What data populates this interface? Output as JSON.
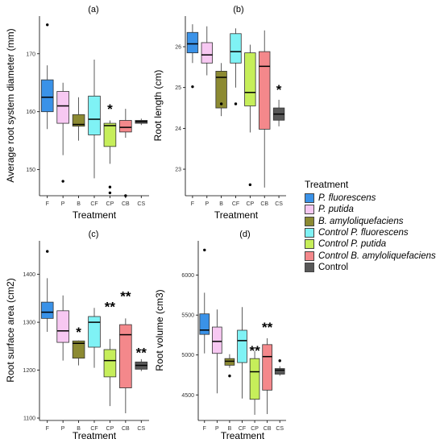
{
  "legend": {
    "title": "Treatment",
    "items": [
      {
        "label": "P. fluorescens",
        "color": "#3a92e8",
        "italic": true
      },
      {
        "label": "P. putida",
        "color": "#f7c8f2",
        "italic": true
      },
      {
        "label": "B. amyloliquefaciens",
        "color": "#8c8a32",
        "italic": true
      },
      {
        "label": "Control P. fluorescens",
        "color": "#7ff2f5",
        "italic": true
      },
      {
        "label": "Control P. putida",
        "color": "#c6ee5a",
        "italic": true
      },
      {
        "label": "Control B. amyloliquefaciens",
        "color": "#f4888b",
        "italic": true
      },
      {
        "label": "Control",
        "color": "#585858",
        "italic": false
      }
    ]
  },
  "chart_data": [
    {
      "type": "box",
      "panel": "(a)",
      "title": "(a)",
      "xlabel": "Treatment",
      "ylabel": "Average root system diameter (mm)",
      "categories": [
        "F",
        "P",
        "B",
        "CF",
        "CP",
        "CB",
        "CS"
      ],
      "ylim": [
        145.5,
        176.5
      ],
      "yticks": [
        150,
        160,
        170
      ],
      "boxes": [
        {
          "min": 157,
          "q1": 160,
          "median": 162.5,
          "q3": 165.5,
          "max": 168,
          "outliers": [
            175
          ]
        },
        {
          "min": 152.5,
          "q1": 158,
          "median": 161,
          "q3": 163.5,
          "max": 165,
          "outliers": [
            148
          ]
        },
        {
          "min": 155,
          "q1": 157.5,
          "median": 157.8,
          "q3": 159.5,
          "max": 162.5,
          "outliers": []
        },
        {
          "min": 148.5,
          "q1": 156,
          "median": 158.7,
          "q3": 162.7,
          "max": 169,
          "outliers": []
        },
        {
          "min": 151,
          "q1": 154,
          "median": 157.6,
          "q3": 158,
          "max": 158.5,
          "outliers": [
            147,
            146
          ]
        },
        {
          "min": 155.5,
          "q1": 156.5,
          "median": 157.3,
          "q3": 158.5,
          "max": 160.5,
          "outliers": [
            145.5
          ]
        },
        {
          "min": 157.7,
          "q1": 158,
          "median": 158.3,
          "q3": 158.5,
          "max": 158.8,
          "outliers": []
        }
      ],
      "annotations": [
        {
          "cat": "CP",
          "text": "*",
          "y": 160.5
        }
      ]
    },
    {
      "type": "box",
      "panel": "(b)",
      "title": "(b)",
      "xlabel": "Treatment",
      "ylabel": "Root length (cm)",
      "categories": [
        "F",
        "P",
        "B",
        "CF",
        "CP",
        "CB",
        "CS"
      ],
      "ylim": [
        22.35,
        26.75
      ],
      "yticks": [
        23,
        24,
        25,
        26
      ],
      "boxes": [
        {
          "min": 25.6,
          "q1": 25.85,
          "median": 26.07,
          "q3": 26.35,
          "max": 26.55,
          "outliers": [
            25.02
          ]
        },
        {
          "min": 25.3,
          "q1": 25.6,
          "median": 25.8,
          "q3": 26.1,
          "max": 26.5,
          "outliers": []
        },
        {
          "min": 24.3,
          "q1": 24.5,
          "median": 25.25,
          "q3": 25.4,
          "max": 25.6,
          "outliers": [
            24.6
          ]
        },
        {
          "min": 25.0,
          "q1": 25.6,
          "median": 25.88,
          "q3": 26.32,
          "max": 26.45,
          "outliers": [
            24.6
          ]
        },
        {
          "min": 23.9,
          "q1": 24.55,
          "median": 24.88,
          "q3": 25.85,
          "max": 26.05,
          "outliers": [
            22.62
          ]
        },
        {
          "min": 22.55,
          "q1": 23.98,
          "median": 25.52,
          "q3": 25.88,
          "max": 26.4,
          "outliers": []
        },
        {
          "min": 24.05,
          "q1": 24.2,
          "median": 24.35,
          "q3": 24.5,
          "max": 24.7,
          "outliers": []
        }
      ],
      "annotations": [
        {
          "cat": "CS",
          "text": "*",
          "y": 24.95
        }
      ]
    },
    {
      "type": "box",
      "panel": "(c)",
      "title": "(c)",
      "xlabel": "Treatment",
      "ylabel": "Root surface area (cm2)",
      "categories": [
        "F",
        "P",
        "B",
        "CF",
        "CP",
        "CB",
        "CS"
      ],
      "ylim": [
        1095,
        1470
      ],
      "yticks": [
        1100,
        1200,
        1300,
        1400
      ],
      "boxes": [
        {
          "min": 1280,
          "q1": 1308,
          "median": 1321,
          "q3": 1342,
          "max": 1392,
          "outliers": [
            1448
          ]
        },
        {
          "min": 1220,
          "q1": 1258,
          "median": 1282,
          "q3": 1324,
          "max": 1356,
          "outliers": []
        },
        {
          "min": 1210,
          "q1": 1225,
          "median": 1256,
          "q3": 1261,
          "max": 1262,
          "outliers": []
        },
        {
          "min": 1205,
          "q1": 1248,
          "median": 1300,
          "q3": 1312,
          "max": 1330,
          "outliers": []
        },
        {
          "min": 1125,
          "q1": 1186,
          "median": 1220,
          "q3": 1243,
          "max": 1265,
          "outliers": []
        },
        {
          "min": 1110,
          "q1": 1163,
          "median": 1274,
          "q3": 1295,
          "max": 1308,
          "outliers": []
        },
        {
          "min": 1198,
          "q1": 1202,
          "median": 1210,
          "q3": 1217,
          "max": 1223,
          "outliers": []
        }
      ],
      "annotations": [
        {
          "cat": "B",
          "text": "*",
          "y": 1280
        },
        {
          "cat": "CP",
          "text": "**",
          "y": 1333
        },
        {
          "cat": "CB",
          "text": "**",
          "y": 1355
        },
        {
          "cat": "CS",
          "text": "**",
          "y": 1237
        }
      ]
    },
    {
      "type": "box",
      "panel": "(d)",
      "title": "(d)",
      "xlabel": "Treatment",
      "ylabel": "Root volume (cm3)",
      "categories": [
        "F",
        "P",
        "B",
        "CF",
        "CP",
        "CB",
        "CS"
      ],
      "ylim": [
        4180,
        6430
      ],
      "yticks": [
        4500,
        5000,
        5500,
        6000
      ],
      "boxes": [
        {
          "min": 5020,
          "q1": 5258,
          "median": 5312,
          "q3": 5515,
          "max": 5780,
          "outliers": [
            6315
          ]
        },
        {
          "min": 4520,
          "q1": 5020,
          "median": 5170,
          "q3": 5350,
          "max": 5570,
          "outliers": []
        },
        {
          "min": 4840,
          "q1": 4872,
          "median": 4922,
          "q3": 4955,
          "max": 5010,
          "outliers": [
            4738
          ]
        },
        {
          "min": 4455,
          "q1": 4905,
          "median": 5180,
          "q3": 5310,
          "max": 5600,
          "outliers": []
        },
        {
          "min": 4250,
          "q1": 4445,
          "median": 4790,
          "q3": 4955,
          "max": 5050,
          "outliers": []
        },
        {
          "min": 4260,
          "q1": 4560,
          "median": 4980,
          "q3": 5130,
          "max": 5210,
          "outliers": []
        },
        {
          "min": 4740,
          "q1": 4760,
          "median": 4810,
          "q3": 4830,
          "max": 4860,
          "outliers": [
            4928
          ]
        }
      ],
      "annotations": [
        {
          "cat": "CP",
          "text": "**",
          "y": 5060
        },
        {
          "cat": "CB",
          "text": "**",
          "y": 5350
        }
      ]
    }
  ]
}
